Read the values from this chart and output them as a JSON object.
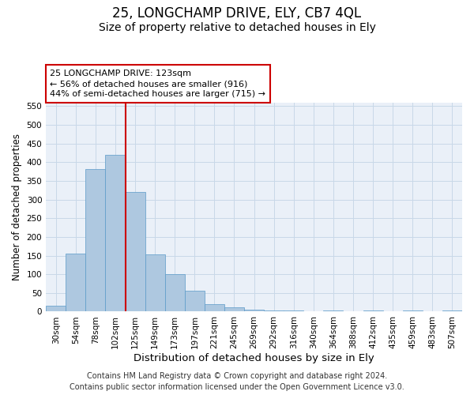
{
  "title1": "25, LONGCHAMP DRIVE, ELY, CB7 4QL",
  "title2": "Size of property relative to detached houses in Ely",
  "xlabel": "Distribution of detached houses by size in Ely",
  "ylabel": "Number of detached properties",
  "categories": [
    "30sqm",
    "54sqm",
    "78sqm",
    "102sqm",
    "125sqm",
    "149sqm",
    "173sqm",
    "197sqm",
    "221sqm",
    "245sqm",
    "269sqm",
    "292sqm",
    "316sqm",
    "340sqm",
    "364sqm",
    "388sqm",
    "412sqm",
    "435sqm",
    "459sqm",
    "483sqm",
    "507sqm"
  ],
  "values": [
    15,
    155,
    382,
    420,
    320,
    153,
    100,
    55,
    20,
    11,
    6,
    4,
    4,
    0,
    3,
    0,
    4,
    0,
    3,
    0,
    4
  ],
  "bar_color": "#aec8e0",
  "bar_edge_color": "#5a9ac8",
  "vline_x_index": 4,
  "vline_color": "#cc0000",
  "annotation_line1": "25 LONGCHAMP DRIVE: 123sqm",
  "annotation_line2": "← 56% of detached houses are smaller (916)",
  "annotation_line3": "44% of semi-detached houses are larger (715) →",
  "annotation_box_color": "#ffffff",
  "annotation_box_edge": "#cc0000",
  "ylim": [
    0,
    560
  ],
  "yticks": [
    0,
    50,
    100,
    150,
    200,
    250,
    300,
    350,
    400,
    450,
    500,
    550
  ],
  "grid_color": "#c8d8e8",
  "bg_color": "#eaf0f8",
  "footer_line1": "Contains HM Land Registry data © Crown copyright and database right 2024.",
  "footer_line2": "Contains public sector information licensed under the Open Government Licence v3.0.",
  "title1_fontsize": 12,
  "title2_fontsize": 10,
  "xlabel_fontsize": 9.5,
  "ylabel_fontsize": 8.5,
  "tick_fontsize": 7.5,
  "annotation_fontsize": 8,
  "footer_fontsize": 7
}
